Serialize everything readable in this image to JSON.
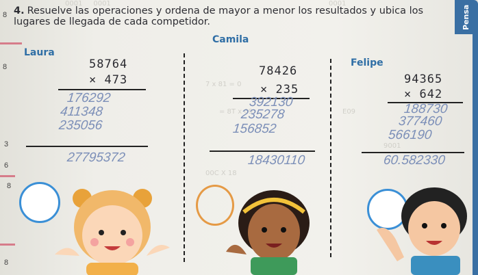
{
  "instruction": {
    "number": "4.",
    "text": "Resuelve las operaciones y ordena de mayor a menor los resultados y ubica los lugares de llegada de cada competidor."
  },
  "side_tab": "Pensa",
  "margin_numbers": [
    "8",
    "8",
    "3",
    "6",
    "8",
    "8"
  ],
  "competitors": [
    {
      "name": "Laura",
      "multiplicand": "58764",
      "multiplier": "× 473",
      "partials": [
        "176292",
        "411348",
        "235056"
      ],
      "result": "27795372"
    },
    {
      "name": "Camila",
      "multiplicand": "78426",
      "multiplier": "× 235",
      "partials": [
        "392130",
        "235278",
        "156852"
      ],
      "result": "18430110"
    },
    {
      "name": "Felipe",
      "multiplicand": "94365",
      "multiplier": "× 642",
      "partials": [
        "188730",
        "377460",
        "566190"
      ],
      "result": "60.582330"
    }
  ],
  "colors": {
    "name_blue": "#2f6ea5",
    "circle_blue": "#3a8fd6",
    "handwriting": "#7c8fb8"
  }
}
